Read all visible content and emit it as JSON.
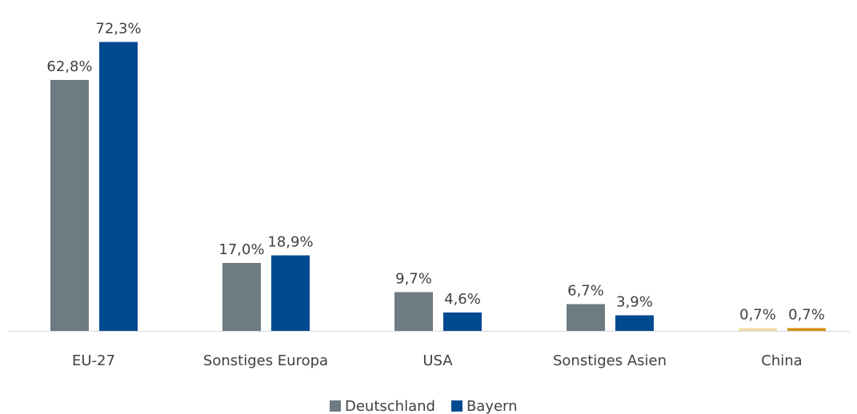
{
  "chart_data": {
    "type": "bar",
    "categories": [
      "EU-27",
      "Sonstiges Europa",
      "USA",
      "Sonstiges Asien",
      "China"
    ],
    "series": [
      {
        "name": "Deutschland",
        "color": "#6e7b83",
        "colors": [
          "#6e7b83",
          "#6e7b83",
          "#6e7b83",
          "#6e7b83",
          "#f3dcaa"
        ],
        "values": [
          62.8,
          17.0,
          9.7,
          6.7,
          0.7
        ],
        "value_labels": [
          "62,8%",
          "17,0%",
          "9,7%",
          "6,7%",
          "0,7%"
        ]
      },
      {
        "name": "Bayern",
        "color": "#004a8f",
        "colors": [
          "#004a8f",
          "#004a8f",
          "#004a8f",
          "#004a8f",
          "#d4901a"
        ],
        "values": [
          72.3,
          18.9,
          4.6,
          3.9,
          0.7
        ],
        "value_labels": [
          "72,3%",
          "18,9%",
          "4,6%",
          "3,9%",
          "0,7%"
        ]
      }
    ],
    "ylim": [
      0,
      75
    ],
    "legend": "bottom"
  }
}
